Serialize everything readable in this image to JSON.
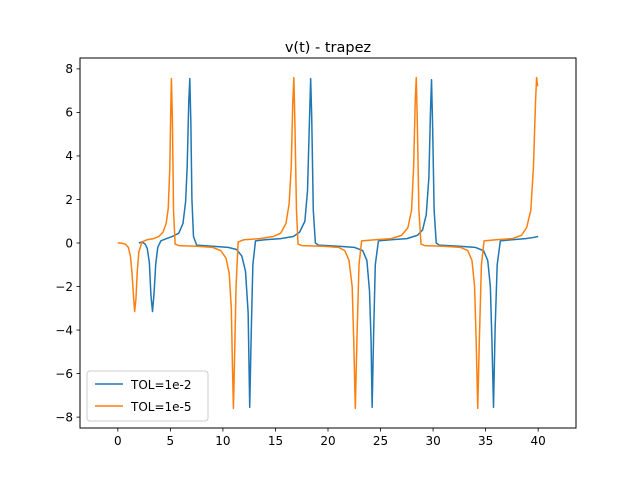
{
  "chart_data": {
    "type": "line",
    "title": "v(t) - trapez",
    "xlabel": "",
    "ylabel": "",
    "xlim": [
      -3.6,
      43.6
    ],
    "ylim": [
      -8.5,
      8.5
    ],
    "x_ticks": [
      0,
      5,
      10,
      15,
      20,
      25,
      30,
      35,
      40
    ],
    "y_ticks": [
      -8,
      -6,
      -4,
      -2,
      0,
      2,
      4,
      6,
      8
    ],
    "x_tick_labels": [
      "0",
      "5",
      "10",
      "15",
      "20",
      "25",
      "30",
      "35",
      "40"
    ],
    "y_tick_labels": [
      "−8",
      "−6",
      "−4",
      "−2",
      "0",
      "2",
      "4",
      "6",
      "8"
    ],
    "grid": false,
    "legend_position": "lower-left",
    "series": [
      {
        "name": "TOL=1e-2",
        "color": "#1f77b4",
        "points": [
          [
            2.0,
            0.0
          ],
          [
            2.3,
            0.05
          ],
          [
            2.6,
            -0.05
          ],
          [
            2.8,
            -0.25
          ],
          [
            3.0,
            -0.9
          ],
          [
            3.15,
            -2.4
          ],
          [
            3.3,
            -3.15
          ],
          [
            3.45,
            -2.3
          ],
          [
            3.6,
            -1.0
          ],
          [
            3.8,
            -0.2
          ],
          [
            4.1,
            0.1
          ],
          [
            4.6,
            0.2
          ],
          [
            5.2,
            0.3
          ],
          [
            5.8,
            0.45
          ],
          [
            6.2,
            0.9
          ],
          [
            6.45,
            1.9
          ],
          [
            6.6,
            3.5
          ],
          [
            6.75,
            6.5
          ],
          [
            6.85,
            7.55
          ],
          [
            6.95,
            5.5
          ],
          [
            7.05,
            2.0
          ],
          [
            7.2,
            0.3
          ],
          [
            7.5,
            -0.1
          ],
          [
            9.0,
            -0.15
          ],
          [
            10.5,
            -0.2
          ],
          [
            11.3,
            -0.3
          ],
          [
            11.8,
            -0.6
          ],
          [
            12.15,
            -1.3
          ],
          [
            12.4,
            -3.2
          ],
          [
            12.55,
            -7.55
          ],
          [
            12.7,
            -4.0
          ],
          [
            12.85,
            -1.0
          ],
          [
            13.1,
            0.1
          ],
          [
            14.0,
            0.15
          ],
          [
            15.5,
            0.2
          ],
          [
            16.7,
            0.3
          ],
          [
            17.3,
            0.5
          ],
          [
            17.8,
            1.0
          ],
          [
            18.05,
            2.4
          ],
          [
            18.2,
            5.0
          ],
          [
            18.35,
            7.55
          ],
          [
            18.45,
            5.8
          ],
          [
            18.6,
            1.5
          ],
          [
            18.8,
            0.0
          ],
          [
            19.1,
            -0.1
          ],
          [
            21.0,
            -0.15
          ],
          [
            22.5,
            -0.2
          ],
          [
            23.3,
            -0.35
          ],
          [
            23.7,
            -0.8
          ],
          [
            23.95,
            -2.2
          ],
          [
            24.1,
            -4.5
          ],
          [
            24.2,
            -7.55
          ],
          [
            24.35,
            -4.0
          ],
          [
            24.5,
            -1.0
          ],
          [
            24.8,
            0.1
          ],
          [
            26.0,
            0.15
          ],
          [
            27.5,
            0.2
          ],
          [
            28.5,
            0.35
          ],
          [
            29.0,
            0.6
          ],
          [
            29.35,
            1.3
          ],
          [
            29.6,
            3.0
          ],
          [
            29.75,
            6.0
          ],
          [
            29.85,
            7.5
          ],
          [
            29.95,
            5.5
          ],
          [
            30.1,
            1.5
          ],
          [
            30.3,
            0.0
          ],
          [
            30.6,
            -0.1
          ],
          [
            32.5,
            -0.15
          ],
          [
            34.0,
            -0.2
          ],
          [
            34.8,
            -0.35
          ],
          [
            35.2,
            -0.8
          ],
          [
            35.45,
            -2.0
          ],
          [
            35.6,
            -4.5
          ],
          [
            35.75,
            -7.55
          ],
          [
            35.9,
            -4.0
          ],
          [
            36.1,
            -1.0
          ],
          [
            36.4,
            0.1
          ],
          [
            37.5,
            0.15
          ],
          [
            38.8,
            0.2
          ],
          [
            39.5,
            0.25
          ],
          [
            40.0,
            0.3
          ]
        ]
      },
      {
        "name": "TOL=1e-5",
        "color": "#ff7f0e",
        "points": [
          [
            0.0,
            0.0
          ],
          [
            0.3,
            0.0
          ],
          [
            0.7,
            -0.05
          ],
          [
            1.0,
            -0.2
          ],
          [
            1.2,
            -0.6
          ],
          [
            1.35,
            -1.4
          ],
          [
            1.5,
            -2.5
          ],
          [
            1.6,
            -3.15
          ],
          [
            1.72,
            -2.6
          ],
          [
            1.85,
            -1.3
          ],
          [
            2.0,
            -0.4
          ],
          [
            2.3,
            0.05
          ],
          [
            2.8,
            0.15
          ],
          [
            3.4,
            0.2
          ],
          [
            3.9,
            0.3
          ],
          [
            4.3,
            0.5
          ],
          [
            4.6,
            0.9
          ],
          [
            4.8,
            1.6
          ],
          [
            4.95,
            3.5
          ],
          [
            5.05,
            6.5
          ],
          [
            5.1,
            7.55
          ],
          [
            5.2,
            5.5
          ],
          [
            5.3,
            1.5
          ],
          [
            5.45,
            -0.05
          ],
          [
            5.8,
            -0.12
          ],
          [
            7.5,
            -0.15
          ],
          [
            9.0,
            -0.2
          ],
          [
            9.8,
            -0.35
          ],
          [
            10.3,
            -0.7
          ],
          [
            10.6,
            -1.4
          ],
          [
            10.8,
            -3.0
          ],
          [
            10.9,
            -5.5
          ],
          [
            11.0,
            -7.6
          ],
          [
            11.1,
            -5.5
          ],
          [
            11.25,
            -2.0
          ],
          [
            11.45,
            0.05
          ],
          [
            12.0,
            0.15
          ],
          [
            13.5,
            0.2
          ],
          [
            14.8,
            0.3
          ],
          [
            15.5,
            0.45
          ],
          [
            16.0,
            0.9
          ],
          [
            16.3,
            1.8
          ],
          [
            16.5,
            3.5
          ],
          [
            16.65,
            6.5
          ],
          [
            16.75,
            7.6
          ],
          [
            16.85,
            5.5
          ],
          [
            17.0,
            1.5
          ],
          [
            17.15,
            -0.05
          ],
          [
            17.5,
            -0.12
          ],
          [
            19.5,
            -0.15
          ],
          [
            21.0,
            -0.2
          ],
          [
            21.6,
            -0.35
          ],
          [
            22.0,
            -0.8
          ],
          [
            22.3,
            -2.0
          ],
          [
            22.45,
            -4.5
          ],
          [
            22.6,
            -7.6
          ],
          [
            22.75,
            -4.5
          ],
          [
            22.95,
            -1.0
          ],
          [
            23.2,
            0.1
          ],
          [
            24.5,
            0.15
          ],
          [
            26.0,
            0.2
          ],
          [
            27.0,
            0.35
          ],
          [
            27.6,
            0.7
          ],
          [
            27.95,
            1.5
          ],
          [
            28.15,
            3.5
          ],
          [
            28.3,
            6.5
          ],
          [
            28.4,
            7.6
          ],
          [
            28.5,
            5.5
          ],
          [
            28.65,
            1.5
          ],
          [
            28.85,
            -0.05
          ],
          [
            29.2,
            -0.12
          ],
          [
            31.0,
            -0.15
          ],
          [
            32.6,
            -0.2
          ],
          [
            33.3,
            -0.35
          ],
          [
            33.7,
            -0.8
          ],
          [
            33.95,
            -2.0
          ],
          [
            34.1,
            -4.5
          ],
          [
            34.25,
            -7.6
          ],
          [
            34.4,
            -4.5
          ],
          [
            34.6,
            -1.0
          ],
          [
            34.85,
            0.1
          ],
          [
            36.0,
            0.15
          ],
          [
            37.5,
            0.2
          ],
          [
            38.4,
            0.35
          ],
          [
            38.9,
            0.7
          ],
          [
            39.3,
            1.5
          ],
          [
            39.55,
            3.5
          ],
          [
            39.75,
            6.5
          ],
          [
            39.85,
            7.6
          ],
          [
            39.95,
            7.2
          ]
        ]
      }
    ]
  }
}
